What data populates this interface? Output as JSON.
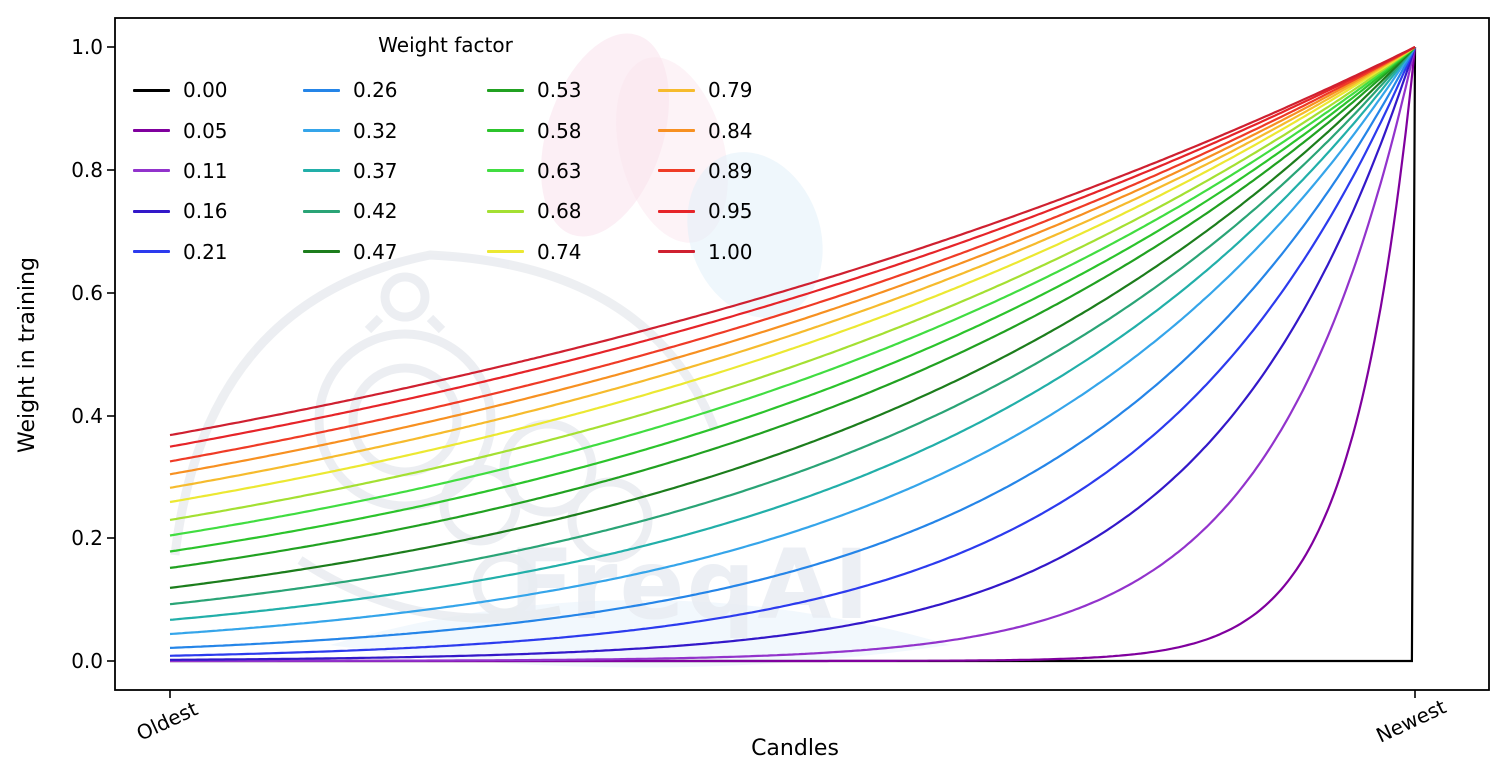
{
  "figure": {
    "watermark_text": "FreqAI"
  },
  "chart": {
    "legend_title": "Weight factor",
    "xlabel": "Candles",
    "ylabel": "Weight in training",
    "x_tick_labels": [
      "Oldest",
      "Newest"
    ],
    "y_tick_labels": [
      "1.0",
      "0.8",
      "0.6",
      "0.4",
      "0.2",
      "0.0"
    ]
  },
  "chart_data": {
    "type": "line",
    "title": "",
    "legend_title": "Weight factor",
    "legend_position": "upper left",
    "legend_columns": 4,
    "legend_order": "column-major",
    "xlabel": "Candles",
    "ylabel": "Weight in training",
    "x_axis": {
      "type": "continuous",
      "start_label": "Oldest",
      "end_label": "Newest"
    },
    "ylim": [
      0,
      1
    ],
    "y_ticks": [
      0.0,
      0.2,
      0.4,
      0.6,
      0.8,
      1.0
    ],
    "grid": false,
    "formula": "weight(t) = exp(-(1 - t) / factor) for factor > 0, with t from 0 (Oldest) to 1 (Newest); factor = 0.00 gives weight 0 everywhere except weight 1 at the newest candle; every curve reaches 1.0 at Newest",
    "series": [
      {
        "label": "0.00",
        "factor": 0.0,
        "color": "#000000",
        "weight_at_oldest": 0.0,
        "weight_at_newest": 1.0
      },
      {
        "label": "0.05",
        "factor": 0.05,
        "color": "#80009e",
        "weight_at_oldest": 0.0,
        "weight_at_newest": 1.0
      },
      {
        "label": "0.11",
        "factor": 0.11,
        "color": "#9233cc",
        "weight_at_oldest": 0.0001,
        "weight_at_newest": 1.0
      },
      {
        "label": "0.16",
        "factor": 0.16,
        "color": "#3318c9",
        "weight_at_oldest": 0.0019,
        "weight_at_newest": 1.0
      },
      {
        "label": "0.21",
        "factor": 0.21,
        "color": "#2c3bee",
        "weight_at_oldest": 0.0086,
        "weight_at_newest": 1.0
      },
      {
        "label": "0.26",
        "factor": 0.26,
        "color": "#2585e8",
        "weight_at_oldest": 0.0213,
        "weight_at_newest": 1.0
      },
      {
        "label": "0.32",
        "factor": 0.32,
        "color": "#35a5ea",
        "weight_at_oldest": 0.0439,
        "weight_at_newest": 1.0
      },
      {
        "label": "0.37",
        "factor": 0.37,
        "color": "#22afa9",
        "weight_at_oldest": 0.067,
        "weight_at_newest": 1.0
      },
      {
        "label": "0.42",
        "factor": 0.42,
        "color": "#2aa476",
        "weight_at_oldest": 0.0924,
        "weight_at_newest": 1.0
      },
      {
        "label": "0.47",
        "factor": 0.47,
        "color": "#1c7d1c",
        "weight_at_oldest": 0.119,
        "weight_at_newest": 1.0
      },
      {
        "label": "0.53",
        "factor": 0.53,
        "color": "#21a121",
        "weight_at_oldest": 0.152,
        "weight_at_newest": 1.0
      },
      {
        "label": "0.58",
        "factor": 0.58,
        "color": "#2cc42c",
        "weight_at_oldest": 0.178,
        "weight_at_newest": 1.0
      },
      {
        "label": "0.63",
        "factor": 0.63,
        "color": "#41dd41",
        "weight_at_oldest": 0.204,
        "weight_at_newest": 1.0
      },
      {
        "label": "0.68",
        "factor": 0.68,
        "color": "#a4e032",
        "weight_at_oldest": 0.23,
        "weight_at_newest": 1.0
      },
      {
        "label": "0.74",
        "factor": 0.74,
        "color": "#ece832",
        "weight_at_oldest": 0.259,
        "weight_at_newest": 1.0
      },
      {
        "label": "0.79",
        "factor": 0.79,
        "color": "#f6bb2d",
        "weight_at_oldest": 0.282,
        "weight_at_newest": 1.0
      },
      {
        "label": "0.84",
        "factor": 0.84,
        "color": "#f79021",
        "weight_at_oldest": 0.304,
        "weight_at_newest": 1.0
      },
      {
        "label": "0.89",
        "factor": 0.89,
        "color": "#ef3b26",
        "weight_at_oldest": 0.325,
        "weight_at_newest": 1.0
      },
      {
        "label": "0.95",
        "factor": 0.95,
        "color": "#e62429",
        "weight_at_oldest": 0.349,
        "weight_at_newest": 1.0
      },
      {
        "label": "1.00",
        "factor": 1.0,
        "color": "#cf2030",
        "weight_at_oldest": 0.368,
        "weight_at_newest": 1.0
      }
    ]
  }
}
